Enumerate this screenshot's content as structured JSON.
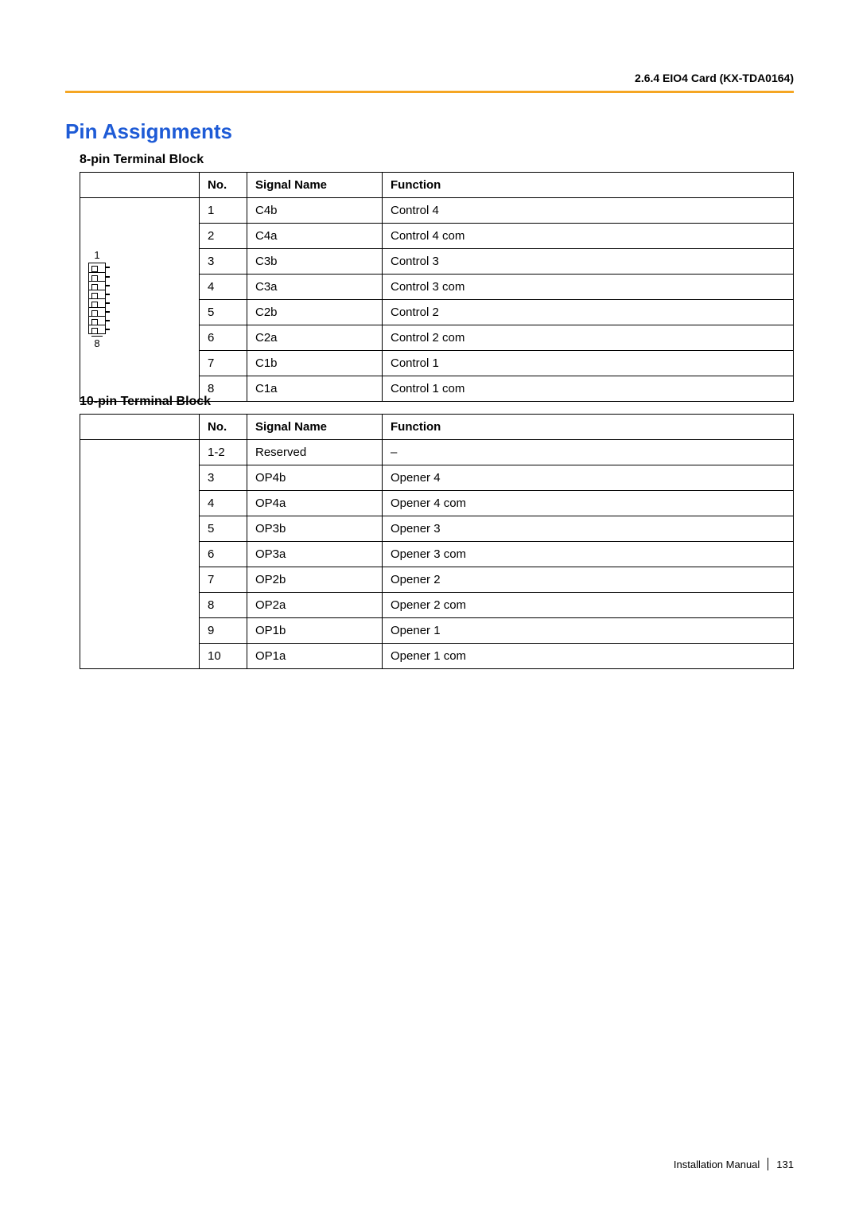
{
  "page": {
    "header_right": "2.6.4 EIO4 Card (KX-TDA0164)",
    "section_title": "Pin Assignments",
    "footer_text": "Installation Manual",
    "page_number": "131",
    "accent_color": "#f5a623",
    "title_color": "#1e5bd6",
    "text_color": "#000000",
    "background": "#ffffff"
  },
  "table8": {
    "title": "8-pin Terminal Block",
    "headers": {
      "no": "No.",
      "signal": "Signal Name",
      "func": "Function"
    },
    "diagram": {
      "top_label": "1",
      "bottom_label": "8",
      "pins": 8
    },
    "rows": [
      {
        "no": "1",
        "signal": "C4b",
        "func": "Control 4"
      },
      {
        "no": "2",
        "signal": "C4a",
        "func": "Control 4 com"
      },
      {
        "no": "3",
        "signal": "C3b",
        "func": "Control 3"
      },
      {
        "no": "4",
        "signal": "C3a",
        "func": "Control 3 com"
      },
      {
        "no": "5",
        "signal": "C2b",
        "func": "Control 2"
      },
      {
        "no": "6",
        "signal": "C2a",
        "func": "Control 2 com"
      },
      {
        "no": "7",
        "signal": "C1b",
        "func": "Control 1"
      },
      {
        "no": "8",
        "signal": "C1a",
        "func": "Control 1 com"
      }
    ]
  },
  "table10": {
    "title": "10-pin Terminal Block",
    "headers": {
      "no": "No.",
      "signal": "Signal Name",
      "func": "Function"
    },
    "rows": [
      {
        "no": "1-2",
        "signal": "Reserved",
        "func": "–"
      },
      {
        "no": "3",
        "signal": "OP4b",
        "func": "Opener 4"
      },
      {
        "no": "4",
        "signal": "OP4a",
        "func": "Opener 4 com"
      },
      {
        "no": "5",
        "signal": "OP3b",
        "func": "Opener 3"
      },
      {
        "no": "6",
        "signal": "OP3a",
        "func": "Opener 3 com"
      },
      {
        "no": "7",
        "signal": "OP2b",
        "func": "Opener 2"
      },
      {
        "no": "8",
        "signal": "OP2a",
        "func": "Opener 2 com"
      },
      {
        "no": "9",
        "signal": "OP1b",
        "func": "Opener 1"
      },
      {
        "no": "10",
        "signal": "OP1a",
        "func": "Opener 1 com"
      }
    ]
  }
}
